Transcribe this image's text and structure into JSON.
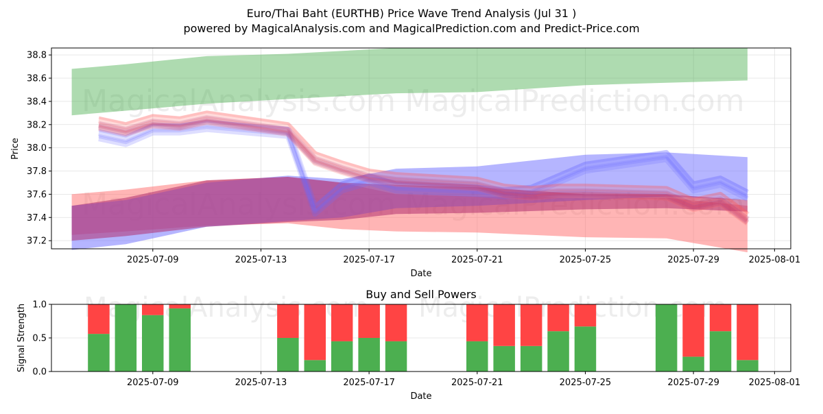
{
  "title": "Euro/Thai Baht (EURTHB) Price Wave Trend Analysis (Jul 31 )",
  "subtitle": "powered by MagicalAnalysis.com and MagicalPrediction.com and Predict-Price.com",
  "watermark_left": "MagicalAnalysis.com",
  "watermark_right": "MagicalPrediction.com",
  "colors": {
    "green_band": "#4caf50",
    "red_band": "#ff6b6b",
    "blue_band": "#6b6bff",
    "magenta_band": "#b03070",
    "buy": "#4caf50",
    "sell": "#ff4444"
  },
  "chart_data": [
    {
      "type": "area",
      "title": "",
      "xlabel": "Date",
      "ylabel": "Price",
      "x_ticks": [
        "2025-07-09",
        "2025-07-13",
        "2025-07-17",
        "2025-07-21",
        "2025-07-25",
        "2025-07-29",
        "2025-08-01"
      ],
      "y_ticks": [
        "37.2",
        "37.4",
        "37.6",
        "37.8",
        "38.0",
        "38.2",
        "38.4",
        "38.6",
        "38.8"
      ],
      "xlim": [
        "2025-07-05",
        "2025-08-01"
      ],
      "ylim": [
        37.13,
        38.86
      ],
      "grid": true,
      "bands": [
        {
          "color": "green",
          "x": [
            "2025-07-06",
            "2025-07-08",
            "2025-07-11",
            "2025-07-14",
            "2025-07-18",
            "2025-07-21",
            "2025-07-25",
            "2025-07-28",
            "2025-07-31"
          ],
          "upper": [
            38.68,
            38.72,
            38.79,
            38.81,
            38.86,
            38.86,
            38.86,
            38.86,
            38.86
          ],
          "lower": [
            38.28,
            38.32,
            38.38,
            38.42,
            38.47,
            38.48,
            38.54,
            38.56,
            38.58
          ]
        },
        {
          "color": "red",
          "x": [
            "2025-07-06",
            "2025-07-08",
            "2025-07-11",
            "2025-07-14",
            "2025-07-16",
            "2025-07-18",
            "2025-07-21",
            "2025-07-25",
            "2025-07-28",
            "2025-07-31"
          ],
          "upper": [
            37.6,
            37.64,
            37.72,
            37.75,
            37.7,
            37.6,
            37.58,
            37.57,
            37.57,
            37.5
          ],
          "lower": [
            37.25,
            37.28,
            37.33,
            37.35,
            37.3,
            37.28,
            37.27,
            37.23,
            37.22,
            37.1
          ]
        },
        {
          "color": "blue",
          "x": [
            "2025-07-06",
            "2025-07-08",
            "2025-07-11",
            "2025-07-14",
            "2025-07-16",
            "2025-07-18",
            "2025-07-21",
            "2025-07-25",
            "2025-07-28",
            "2025-07-31"
          ],
          "upper": [
            37.5,
            37.55,
            37.7,
            37.76,
            37.73,
            37.82,
            37.84,
            37.94,
            37.96,
            37.92
          ],
          "lower": [
            37.12,
            37.17,
            37.32,
            37.37,
            37.4,
            37.48,
            37.5,
            37.55,
            37.58,
            37.55
          ]
        },
        {
          "color": "magenta",
          "x": [
            "2025-07-06",
            "2025-07-08",
            "2025-07-11",
            "2025-07-14",
            "2025-07-16",
            "2025-07-18",
            "2025-07-21",
            "2025-07-25",
            "2025-07-28",
            "2025-07-31"
          ],
          "upper": [
            37.5,
            37.57,
            37.72,
            37.75,
            37.7,
            37.68,
            37.66,
            37.6,
            37.6,
            37.55
          ],
          "lower": [
            37.2,
            37.24,
            37.32,
            37.36,
            37.38,
            37.43,
            37.44,
            37.47,
            37.48,
            37.45
          ]
        }
      ],
      "wave_lines": {
        "dates": [
          "2025-07-07",
          "2025-07-08",
          "2025-07-09",
          "2025-07-10",
          "2025-07-11",
          "2025-07-14",
          "2025-07-15",
          "2025-07-16",
          "2025-07-17",
          "2025-07-18",
          "2025-07-21",
          "2025-07-22",
          "2025-07-23",
          "2025-07-24",
          "2025-07-25",
          "2025-07-28",
          "2025-07-29",
          "2025-07-30",
          "2025-07-31"
        ],
        "red_series": [
          38.2,
          38.15,
          38.22,
          38.2,
          38.25,
          38.15,
          37.9,
          37.82,
          37.75,
          37.72,
          37.68,
          37.62,
          37.6,
          37.62,
          37.62,
          37.6,
          37.5,
          37.55,
          37.38
        ],
        "blue_series": [
          38.1,
          38.05,
          38.15,
          38.15,
          38.18,
          38.12,
          37.45,
          37.65,
          37.72,
          37.65,
          37.62,
          37.6,
          37.62,
          37.72,
          37.82,
          37.92,
          37.65,
          37.7,
          37.58
        ]
      }
    },
    {
      "type": "bar",
      "title": "Buy and Sell Powers",
      "xlabel": "Date",
      "ylabel": "Signal Strength",
      "x_ticks": [
        "2025-07-09",
        "2025-07-13",
        "2025-07-17",
        "2025-07-21",
        "2025-07-25",
        "2025-07-29",
        "2025-08-01"
      ],
      "y_ticks": [
        "0.0",
        "0.5",
        "1.0"
      ],
      "xlim": [
        "2025-07-05",
        "2025-08-01"
      ],
      "ylim": [
        0,
        1
      ],
      "grid": true,
      "categories": [
        "2025-07-07",
        "2025-07-08",
        "2025-07-09",
        "2025-07-10",
        "2025-07-14",
        "2025-07-15",
        "2025-07-16",
        "2025-07-17",
        "2025-07-18",
        "2025-07-21",
        "2025-07-22",
        "2025-07-23",
        "2025-07-24",
        "2025-07-25",
        "2025-07-28",
        "2025-07-29",
        "2025-07-30",
        "2025-07-31"
      ],
      "series": [
        {
          "name": "Buy",
          "values": [
            0.56,
            1.0,
            0.84,
            0.94,
            0.5,
            0.17,
            0.45,
            0.5,
            0.45,
            0.45,
            0.38,
            0.38,
            0.6,
            0.67,
            1.0,
            0.22,
            0.6,
            0.17
          ]
        },
        {
          "name": "Sell",
          "values": [
            0.44,
            0.0,
            0.16,
            0.06,
            0.5,
            0.83,
            0.55,
            0.5,
            0.55,
            0.55,
            0.62,
            0.62,
            0.4,
            0.33,
            0.0,
            0.78,
            0.4,
            0.83
          ]
        }
      ]
    }
  ]
}
